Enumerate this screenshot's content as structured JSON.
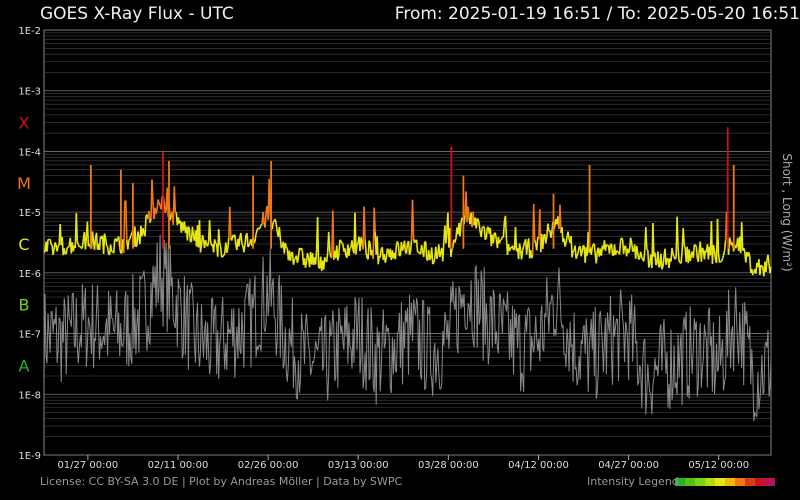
{
  "header": {
    "title": "GOES X-Ray Flux - UTC",
    "from_to": "From: 2025-01-19 16:51  /  To: 2025-05-20 16:51"
  },
  "footer": {
    "license": "License: CC BY-SA 3.0 DE | Plot by Andreas Möller | Data by SWPC",
    "legend_label": "Intensity Legend"
  },
  "chart_data": {
    "type": "line",
    "title": "GOES X-Ray Flux - UTC",
    "ylabel": "Short , Long (W/m²)",
    "yscale": "log",
    "ylim": [
      1e-09,
      0.01
    ],
    "y_ticks": [
      "1E-9",
      "1E-8",
      "1E-7",
      "1E-6",
      "1E-5",
      "1E-4",
      "1E-3",
      "1E-2"
    ],
    "x_ticks": [
      "01/27 00:00",
      "02/11 00:00",
      "02/26 00:00",
      "03/13 00:00",
      "03/28 00:00",
      "04/12 00:00",
      "04/27 00:00",
      "05/12 00:00"
    ],
    "flare_classes": [
      {
        "label": "X",
        "value": 0.0003,
        "color": "#c8141e"
      },
      {
        "label": "M",
        "value": 3e-05,
        "color": "#f07814"
      },
      {
        "label": "C",
        "value": 3e-06,
        "color": "#e6e614"
      },
      {
        "label": "B",
        "value": 3e-07,
        "color": "#78d214"
      },
      {
        "label": "A",
        "value": 3e-08,
        "color": "#28b428"
      }
    ],
    "grid": true,
    "series": [
      {
        "name": "Long",
        "color_by_intensity": true,
        "x": [
          "01/19",
          "01/23",
          "01/27",
          "02/01",
          "02/05",
          "02/08",
          "02/11",
          "02/14",
          "02/17",
          "02/20",
          "02/23",
          "02/26",
          "03/01",
          "03/04",
          "03/07",
          "03/10",
          "03/13",
          "03/16",
          "03/19",
          "03/22",
          "03/25",
          "03/28",
          "03/31",
          "04/03",
          "04/06",
          "04/09",
          "04/12",
          "04/15",
          "04/18",
          "04/21",
          "04/24",
          "04/27",
          "04/30",
          "05/03",
          "05/06",
          "05/09",
          "05/12",
          "05/15",
          "05/18",
          "05/20"
        ],
        "values": [
          2e-06,
          2.5e-06,
          3e-06,
          2.5e-06,
          4e-06,
          1.5e-05,
          6e-06,
          3e-06,
          2.2e-06,
          2.5e-06,
          3e-06,
          8e-06,
          2e-06,
          1.5e-06,
          1.4e-06,
          2.2e-06,
          2.5e-06,
          1.8e-06,
          2e-06,
          2.5e-06,
          1.8e-06,
          2e-06,
          8e-06,
          4e-06,
          2.5e-06,
          2e-06,
          2.5e-06,
          6e-06,
          2e-06,
          1.8e-06,
          2.2e-06,
          2.5e-06,
          1.5e-06,
          1.5e-06,
          1.8e-06,
          2e-06,
          1.7e-06,
          3e-06,
          1e-06,
          1.2e-06
        ]
      },
      {
        "name": "Short",
        "color": "#8a8a8a",
        "x": [
          "01/19",
          "01/23",
          "01/27",
          "02/01",
          "02/05",
          "02/08",
          "02/11",
          "02/14",
          "02/17",
          "02/20",
          "02/23",
          "02/26",
          "03/01",
          "03/04",
          "03/07",
          "03/10",
          "03/13",
          "03/16",
          "03/19",
          "03/22",
          "03/25",
          "03/28",
          "03/31",
          "04/03",
          "04/06",
          "04/09",
          "04/12",
          "04/15",
          "04/18",
          "04/21",
          "04/24",
          "04/27",
          "04/30",
          "05/03",
          "05/06",
          "05/09",
          "05/12",
          "05/15",
          "05/18",
          "05/20"
        ],
        "values": [
          1e-07,
          8e-08,
          1.5e-07,
          1e-07,
          2e-07,
          1e-06,
          3e-07,
          8e-08,
          6e-08,
          1e-07,
          1.5e-07,
          5e-07,
          8e-08,
          4e-08,
          3e-08,
          6e-08,
          1e-07,
          4e-08,
          6e-08,
          1e-07,
          5e-08,
          8e-08,
          6e-07,
          2e-07,
          1e-07,
          6e-08,
          8e-08,
          4e-07,
          6e-08,
          4e-08,
          8e-08,
          1e-07,
          2e-08,
          3e-08,
          4e-08,
          6e-08,
          3e-08,
          2e-07,
          2e-08,
          3e-08
        ]
      }
    ],
    "peaks": [
      {
        "date": "01/27",
        "value": 6e-05
      },
      {
        "date": "02/01",
        "value": 5e-05
      },
      {
        "date": "02/03",
        "value": 3e-05
      },
      {
        "date": "02/08",
        "value": 0.0001
      },
      {
        "date": "02/09",
        "value": 7e-05
      },
      {
        "date": "02/23",
        "value": 4e-05
      },
      {
        "date": "02/26",
        "value": 7e-05
      },
      {
        "date": "03/28",
        "value": 0.00012
      },
      {
        "date": "03/30",
        "value": 4e-05
      },
      {
        "date": "04/14",
        "value": 2e-05
      },
      {
        "date": "04/20",
        "value": 6e-05
      },
      {
        "date": "05/13",
        "value": 0.00025
      },
      {
        "date": "05/14",
        "value": 6e-05
      }
    ]
  }
}
